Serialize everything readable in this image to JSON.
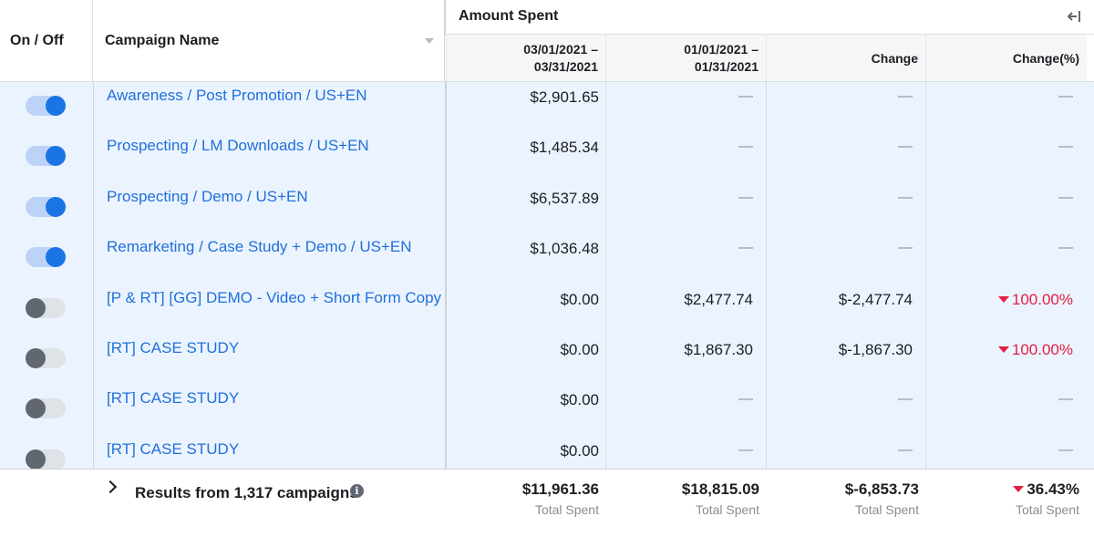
{
  "header": {
    "on_off": "On / Off",
    "campaign_name": "Campaign Name",
    "group_title": "Amount Spent",
    "col1_line1": "03/01/2021 –",
    "col1_line2": "03/31/2021",
    "col2_line1": "01/01/2021 –",
    "col2_line2": "01/31/2021",
    "col3": "Change",
    "col4": "Change(%)"
  },
  "rows": [
    {
      "on": true,
      "name": "Awareness / Post Promotion / US+EN",
      "current": "$2,901.65",
      "previous": "—",
      "change": "—",
      "pct": "—"
    },
    {
      "on": true,
      "name": "Prospecting / LM Downloads / US+EN",
      "current": "$1,485.34",
      "previous": "—",
      "change": "—",
      "pct": "—"
    },
    {
      "on": true,
      "name": "Prospecting / Demo / US+EN",
      "current": "$6,537.89",
      "previous": "—",
      "change": "—",
      "pct": "—"
    },
    {
      "on": true,
      "name": "Remarketing / Case Study + Demo / US+EN",
      "current": "$1,036.48",
      "previous": "—",
      "change": "—",
      "pct": "—"
    },
    {
      "on": false,
      "name": "[P & RT] [GG] DEMO - Video + Short Form Copy",
      "current": "$0.00",
      "previous": "$2,477.74",
      "change": "$-2,477.74",
      "pct": "100.00%"
    },
    {
      "on": false,
      "name": "[RT] CASE STUDY",
      "current": "$0.00",
      "previous": "$1,867.30",
      "change": "$-1,867.30",
      "pct": "100.00%"
    },
    {
      "on": false,
      "name": "[RT] CASE STUDY",
      "current": "$0.00",
      "previous": "—",
      "change": "—",
      "pct": "—"
    },
    {
      "on": false,
      "name": "[RT] CASE STUDY",
      "current": "$0.00",
      "previous": "—",
      "change": "—",
      "pct": "—"
    }
  ],
  "footer": {
    "results": "Results from 1,317 campaigns",
    "info": "i",
    "totals": [
      {
        "value": "$11,961.36",
        "label": "Total Spent"
      },
      {
        "value": "$18,815.09",
        "label": "Total Spent"
      },
      {
        "value": "$-6,853.73",
        "label": "Total Spent"
      },
      {
        "value": "36.43%",
        "label": "Total Spent",
        "negative_trend": true
      }
    ]
  },
  "colors": {
    "link_blue": "#216fdb",
    "toggle_on": "#1b74e4",
    "negative_red": "#e41e3f",
    "row_bg": "#ebf4fe"
  },
  "icons": {
    "collapse": "collapse-left-icon",
    "sort": "sort-caret-icon",
    "expand": "chevron-right-icon",
    "info": "info-icon",
    "decrease": "triangle-down-icon"
  }
}
